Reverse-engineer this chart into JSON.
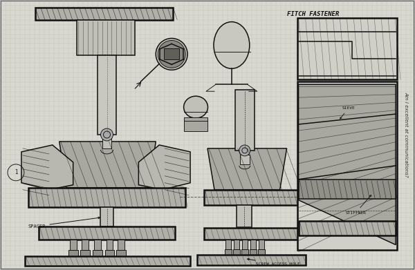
{
  "fig_width": 6.0,
  "fig_height": 3.91,
  "dpi": 100,
  "background_color": "#b8b8b8",
  "paper_color": "#d8d8d0",
  "grid_color": "#a8a8a0",
  "grid_minor_color": "#c0c0b8",
  "sketch_color": "#111111",
  "dark_fill": "#404040",
  "mid_fill": "#888880",
  "light_fill": "#c0c0b8",
  "hatch_fill": "#909088",
  "title_text": "FITCH FASTENER",
  "label_spacer": "SPACER",
  "label_stiffener": "STIFFNER",
  "label_sieve": "SIEVE",
  "label_screw": "SCREW ACCESS HOLE",
  "side_text": "Am I excellent at communications?"
}
